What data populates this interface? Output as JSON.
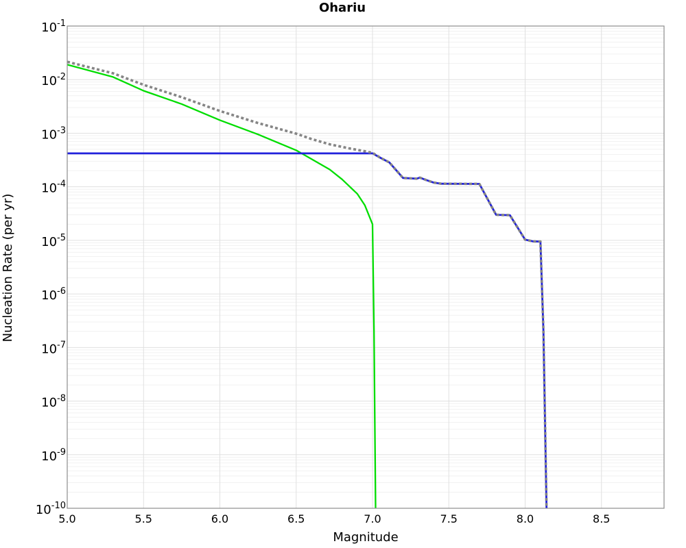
{
  "chart_data": {
    "type": "line",
    "title": "Ohariu",
    "xlabel": "Magnitude",
    "ylabel": "Nucleation Rate (per yr)",
    "grid": true,
    "legend": "none",
    "frame_color": "#8c8c8c",
    "grid_major_color": "#e0e0e0",
    "grid_minor_color": "#f1f1f1",
    "x_axis": {
      "min": 5.0,
      "max": 8.91,
      "ticks": [
        {
          "v": 5.0,
          "label": "5.0"
        },
        {
          "v": 5.5,
          "label": "5.5"
        },
        {
          "v": 6.0,
          "label": "6.0"
        },
        {
          "v": 6.5,
          "label": "6.5"
        },
        {
          "v": 7.0,
          "label": "7.0"
        },
        {
          "v": 7.5,
          "label": "7.5"
        },
        {
          "v": 8.0,
          "label": "8.0"
        },
        {
          "v": 8.5,
          "label": "8.5"
        }
      ],
      "gridlines": [
        5.5,
        6.0,
        6.5,
        7.0,
        7.5,
        8.0,
        8.5
      ]
    },
    "y_axis": {
      "scale": "log",
      "min_exp": -10,
      "max_exp": -1,
      "tick_base": "10",
      "tick_exponents": [
        "-1",
        "-2",
        "-3",
        "-4",
        "-5",
        "-6",
        "-7",
        "-8",
        "-9",
        "-10"
      ]
    },
    "series": [
      {
        "name": "green-solid-line",
        "color": "#00dd00",
        "dash": null,
        "width": 2.3,
        "points": [
          [
            5.0,
            0.019
          ],
          [
            5.3,
            0.0112
          ],
          [
            5.5,
            0.0062
          ],
          [
            5.75,
            0.0035
          ],
          [
            6.0,
            0.00175
          ],
          [
            6.25,
            0.00095
          ],
          [
            6.5,
            0.00048
          ],
          [
            6.6,
            0.00033
          ],
          [
            6.72,
            0.00021
          ],
          [
            6.8,
            0.000138
          ],
          [
            6.9,
            7.4e-05
          ],
          [
            6.95,
            4.5e-05
          ],
          [
            7.0,
            2e-05
          ],
          [
            7.01,
            2e-07
          ],
          [
            7.02,
            1e-10
          ]
        ]
      },
      {
        "name": "blue-solid-line",
        "color": "#2222dd",
        "dash": null,
        "width": 2.8,
        "points": [
          [
            5.0,
            0.00042
          ],
          [
            7.0,
            0.00042
          ],
          [
            7.05,
            0.00035
          ],
          [
            7.11,
            0.000285
          ],
          [
            7.2,
            0.000146
          ],
          [
            7.29,
            0.000142
          ],
          [
            7.31,
            0.000148
          ],
          [
            7.35,
            0.000134
          ],
          [
            7.4,
            0.00012
          ],
          [
            7.45,
            0.000114
          ],
          [
            7.7,
            0.000113
          ],
          [
            7.81,
            3e-05
          ],
          [
            7.9,
            2.95e-05
          ],
          [
            8.0,
            1.03e-05
          ],
          [
            8.05,
            9.6e-06
          ],
          [
            8.1,
            9.5e-06
          ],
          [
            8.12,
            2e-07
          ],
          [
            8.14,
            1e-10
          ]
        ]
      },
      {
        "name": "gray-dotted-line",
        "color": "#858585",
        "dash": [
          4,
          3.4
        ],
        "width": 3.6,
        "points": [
          [
            5.0,
            0.0215
          ],
          [
            5.3,
            0.0131
          ],
          [
            5.5,
            0.008
          ],
          [
            5.75,
            0.0047
          ],
          [
            6.0,
            0.0026
          ],
          [
            6.25,
            0.00155
          ],
          [
            6.5,
            0.00098
          ],
          [
            6.6,
            0.00078
          ],
          [
            6.72,
            0.00062
          ],
          [
            6.85,
            0.00052
          ],
          [
            6.95,
            0.00046
          ],
          [
            7.0,
            0.00043
          ],
          [
            7.05,
            0.00035
          ],
          [
            7.11,
            0.000285
          ],
          [
            7.2,
            0.000146
          ],
          [
            7.29,
            0.000142
          ],
          [
            7.31,
            0.000148
          ],
          [
            7.35,
            0.000134
          ],
          [
            7.4,
            0.00012
          ],
          [
            7.45,
            0.000114
          ],
          [
            7.7,
            0.000113
          ],
          [
            7.81,
            3e-05
          ],
          [
            7.9,
            2.95e-05
          ],
          [
            8.0,
            1.03e-05
          ],
          [
            8.05,
            9.6e-06
          ],
          [
            8.1,
            9.5e-06
          ],
          [
            8.12,
            2e-07
          ],
          [
            8.14,
            1e-10
          ]
        ]
      }
    ]
  }
}
